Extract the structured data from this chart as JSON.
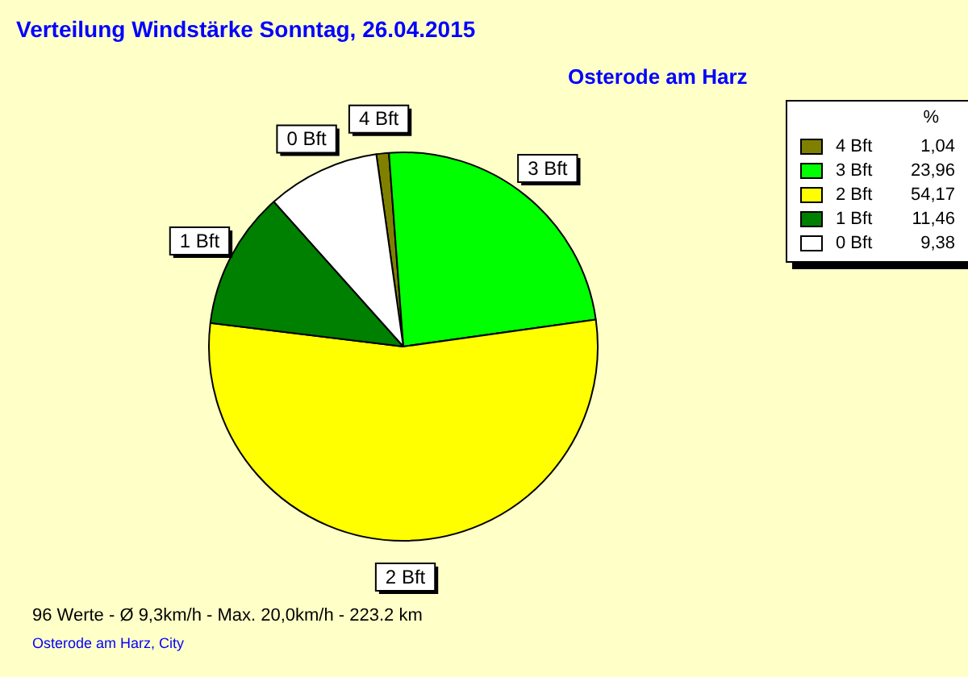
{
  "chart_data": {
    "type": "pie",
    "title": "Verteilung Windstärke  Sonntag, 26.04.2015",
    "subtitle": "Osterode am Harz",
    "legend_title": "%",
    "legend": "top right",
    "categories": [
      "4 Bft",
      "3 Bft",
      "2 Bft",
      "1 Bft",
      "0 Bft"
    ],
    "values": [
      1.04,
      23.96,
      54.17,
      11.46,
      9.38
    ],
    "value_labels": [
      "1,04",
      "23,96",
      "54,17",
      "11,46",
      "9,38"
    ],
    "colors": [
      "#808000",
      "#00ff00",
      "#ffff00",
      "#008000",
      "#ffffff"
    ],
    "annotations": [
      "96 Werte   -   Ø 9,3km/h  -  Max. 20,0km/h   -   223.2 km",
      "Osterode am Harz, City"
    ]
  }
}
